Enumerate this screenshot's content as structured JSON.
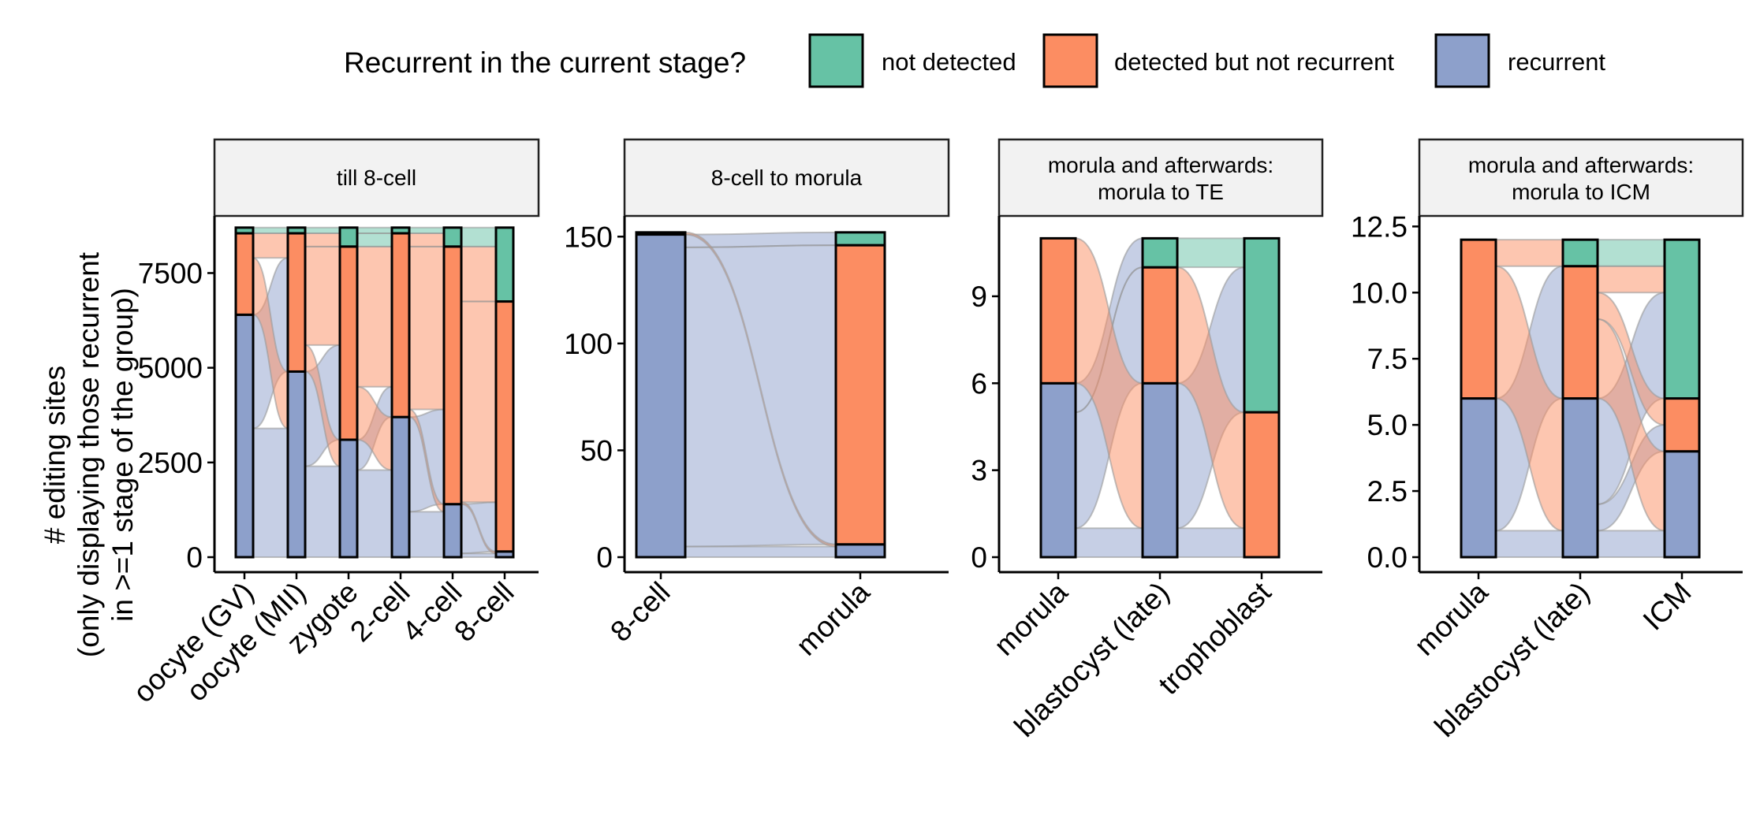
{
  "legend": {
    "title": "Recurrent in the current stage?",
    "items": [
      {
        "label": "not detected",
        "color": "#66c2a5"
      },
      {
        "label": "detected but not recurrent",
        "color": "#fc8d62"
      },
      {
        "label": "recurrent",
        "color": "#8da0cb"
      }
    ]
  },
  "y_axis_title": [
    "# editing sites",
    "(only displaying those recurrent",
    "in >=1 stage of the group)"
  ],
  "chart_data": [
    {
      "type": "alluvial",
      "title": "till 8-cell",
      "ylim": [
        0,
        8800
      ],
      "yticks": [
        0,
        2500,
        5000,
        7500
      ],
      "ytick_labels": [
        "0",
        "2500",
        "5000",
        "7500"
      ],
      "categories": [
        "oocyte (GV)",
        "oocyte (MII)",
        "zygote",
        "2-cell",
        "4-cell",
        "8-cell"
      ],
      "series": [
        {
          "name": "recurrent",
          "values": [
            6400,
            4900,
            3100,
            3700,
            1400,
            150
          ]
        },
        {
          "name": "detected but not recurrent",
          "values": [
            2150,
            3650,
            5100,
            4850,
            6800,
            6600
          ]
        },
        {
          "name": "not detected",
          "values": [
            150,
            150,
            500,
            150,
            500,
            1950
          ]
        }
      ],
      "flows": [
        {
          "from": [
            0,
            "recurrent"
          ],
          "to": [
            1,
            "recurrent"
          ],
          "value": 3400
        },
        {
          "from": [
            0,
            "recurrent"
          ],
          "to": [
            1,
            "detected but not recurrent"
          ],
          "value": 3000
        },
        {
          "from": [
            0,
            "detected but not recurrent"
          ],
          "to": [
            1,
            "recurrent"
          ],
          "value": 1500
        },
        {
          "from": [
            0,
            "detected but not recurrent"
          ],
          "to": [
            1,
            "detected but not recurrent"
          ],
          "value": 650
        },
        {
          "from": [
            0,
            "not detected"
          ],
          "to": [
            1,
            "not detected"
          ],
          "value": 150
        },
        {
          "from": [
            1,
            "recurrent"
          ],
          "to": [
            2,
            "recurrent"
          ],
          "value": 2400
        },
        {
          "from": [
            1,
            "recurrent"
          ],
          "to": [
            2,
            "detected but not recurrent"
          ],
          "value": 2500
        },
        {
          "from": [
            1,
            "detected but not recurrent"
          ],
          "to": [
            2,
            "recurrent"
          ],
          "value": 700
        },
        {
          "from": [
            1,
            "detected but not recurrent"
          ],
          "to": [
            2,
            "detected but not recurrent"
          ],
          "value": 2600
        },
        {
          "from": [
            1,
            "detected but not recurrent"
          ],
          "to": [
            2,
            "not detected"
          ],
          "value": 350
        },
        {
          "from": [
            1,
            "not detected"
          ],
          "to": [
            2,
            "not detected"
          ],
          "value": 150
        },
        {
          "from": [
            2,
            "recurrent"
          ],
          "to": [
            3,
            "recurrent"
          ],
          "value": 2300
        },
        {
          "from": [
            2,
            "recurrent"
          ],
          "to": [
            3,
            "detected but not recurrent"
          ],
          "value": 800
        },
        {
          "from": [
            2,
            "detected but not recurrent"
          ],
          "to": [
            3,
            "recurrent"
          ],
          "value": 1400
        },
        {
          "from": [
            2,
            "detected but not recurrent"
          ],
          "to": [
            3,
            "detected but not recurrent"
          ],
          "value": 3700
        },
        {
          "from": [
            2,
            "not detected"
          ],
          "to": [
            3,
            "detected but not recurrent"
          ],
          "value": 350
        },
        {
          "from": [
            2,
            "not detected"
          ],
          "to": [
            3,
            "not detected"
          ],
          "value": 150
        },
        {
          "from": [
            3,
            "recurrent"
          ],
          "to": [
            4,
            "recurrent"
          ],
          "value": 1200
        },
        {
          "from": [
            3,
            "recurrent"
          ],
          "to": [
            4,
            "detected but not recurrent"
          ],
          "value": 2500
        },
        {
          "from": [
            3,
            "detected but not recurrent"
          ],
          "to": [
            4,
            "recurrent"
          ],
          "value": 200
        },
        {
          "from": [
            3,
            "detected but not recurrent"
          ],
          "to": [
            4,
            "detected but not recurrent"
          ],
          "value": 4300
        },
        {
          "from": [
            3,
            "detected but not recurrent"
          ],
          "to": [
            4,
            "not detected"
          ],
          "value": 350
        },
        {
          "from": [
            3,
            "not detected"
          ],
          "to": [
            4,
            "not detected"
          ],
          "value": 150
        },
        {
          "from": [
            4,
            "recurrent"
          ],
          "to": [
            5,
            "recurrent"
          ],
          "value": 100
        },
        {
          "from": [
            4,
            "recurrent"
          ],
          "to": [
            5,
            "detected but not recurrent"
          ],
          "value": 1300
        },
        {
          "from": [
            4,
            "detected but not recurrent"
          ],
          "to": [
            5,
            "recurrent"
          ],
          "value": 50
        },
        {
          "from": [
            4,
            "detected but not recurrent"
          ],
          "to": [
            5,
            "detected but not recurrent"
          ],
          "value": 5300
        },
        {
          "from": [
            4,
            "detected but not recurrent"
          ],
          "to": [
            5,
            "not detected"
          ],
          "value": 1450
        },
        {
          "from": [
            4,
            "not detected"
          ],
          "to": [
            5,
            "not detected"
          ],
          "value": 500
        }
      ]
    },
    {
      "type": "alluvial",
      "title": "8-cell to morula",
      "ylim": [
        0,
        156
      ],
      "yticks": [
        0,
        50,
        100,
        150
      ],
      "ytick_labels": [
        "0",
        "50",
        "100",
        "150"
      ],
      "categories": [
        "8-cell",
        "morula"
      ],
      "series": [
        {
          "name": "recurrent",
          "values": [
            151,
            6
          ]
        },
        {
          "name": "detected but not recurrent",
          "values": [
            1,
            140
          ]
        },
        {
          "name": "not detected",
          "values": [
            0,
            6
          ]
        }
      ],
      "flows": [
        {
          "from": [
            0,
            "recurrent"
          ],
          "to": [
            1,
            "recurrent"
          ],
          "value": 5
        },
        {
          "from": [
            0,
            "recurrent"
          ],
          "to": [
            1,
            "detected but not recurrent"
          ],
          "value": 140
        },
        {
          "from": [
            0,
            "recurrent"
          ],
          "to": [
            1,
            "not detected"
          ],
          "value": 6
        },
        {
          "from": [
            0,
            "detected but not recurrent"
          ],
          "to": [
            1,
            "recurrent"
          ],
          "value": 1
        }
      ]
    },
    {
      "type": "alluvial",
      "title": [
        "morula and afterwards:",
        "morula to TE"
      ],
      "ylim": [
        0,
        11.5
      ],
      "yticks": [
        0,
        3,
        6,
        9
      ],
      "ytick_labels": [
        "0",
        "3",
        "6",
        "9"
      ],
      "categories": [
        "morula",
        "blastocyst (late)",
        "trophoblast"
      ],
      "series": [
        {
          "name": "recurrent",
          "values": [
            6,
            6,
            0
          ]
        },
        {
          "name": "detected but not recurrent",
          "values": [
            5,
            4,
            5
          ]
        },
        {
          "name": "not detected",
          "values": [
            0,
            1,
            6
          ]
        }
      ],
      "flows": [
        {
          "from": [
            0,
            "recurrent"
          ],
          "to": [
            1,
            "recurrent"
          ],
          "value": 1
        },
        {
          "from": [
            0,
            "recurrent"
          ],
          "to": [
            1,
            "detected but not recurrent"
          ],
          "value": 4
        },
        {
          "from": [
            0,
            "recurrent"
          ],
          "to": [
            1,
            "not detected"
          ],
          "value": 1
        },
        {
          "from": [
            0,
            "detected but not recurrent"
          ],
          "to": [
            1,
            "recurrent"
          ],
          "value": 5
        },
        {
          "from": [
            1,
            "recurrent"
          ],
          "to": [
            2,
            "detected but not recurrent"
          ],
          "value": 1
        },
        {
          "from": [
            1,
            "recurrent"
          ],
          "to": [
            2,
            "not detected"
          ],
          "value": 5
        },
        {
          "from": [
            1,
            "detected but not recurrent"
          ],
          "to": [
            2,
            "detected but not recurrent"
          ],
          "value": 4
        },
        {
          "from": [
            1,
            "not detected"
          ],
          "to": [
            2,
            "not detected"
          ],
          "value": 1
        }
      ]
    },
    {
      "type": "alluvial",
      "title": [
        "morula and afterwards:",
        "morula to ICM"
      ],
      "ylim": [
        0,
        12.6
      ],
      "yticks": [
        0,
        2.5,
        5,
        7.5,
        10,
        12.5
      ],
      "ytick_labels": [
        "0.0",
        "2.5",
        "5.0",
        "7.5",
        "10.0",
        "12.5"
      ],
      "categories": [
        "morula",
        "blastocyst (late)",
        "ICM"
      ],
      "series": [
        {
          "name": "recurrent",
          "values": [
            6,
            6,
            4
          ]
        },
        {
          "name": "detected but not recurrent",
          "values": [
            6,
            5,
            2
          ]
        },
        {
          "name": "not detected",
          "values": [
            0,
            1,
            6
          ]
        }
      ],
      "flows": [
        {
          "from": [
            0,
            "recurrent"
          ],
          "to": [
            1,
            "recurrent"
          ],
          "value": 1
        },
        {
          "from": [
            0,
            "recurrent"
          ],
          "to": [
            1,
            "detected but not recurrent"
          ],
          "value": 5
        },
        {
          "from": [
            0,
            "detected but not recurrent"
          ],
          "to": [
            1,
            "recurrent"
          ],
          "value": 5
        },
        {
          "from": [
            0,
            "detected but not recurrent"
          ],
          "to": [
            1,
            "not detected"
          ],
          "value": 1
        },
        {
          "from": [
            1,
            "recurrent"
          ],
          "to": [
            2,
            "recurrent"
          ],
          "value": 1
        },
        {
          "from": [
            1,
            "recurrent"
          ],
          "to": [
            2,
            "detected but not recurrent"
          ],
          "value": 1
        },
        {
          "from": [
            1,
            "recurrent"
          ],
          "to": [
            2,
            "not detected"
          ],
          "value": 4
        },
        {
          "from": [
            1,
            "detected but not recurrent"
          ],
          "to": [
            2,
            "recurrent"
          ],
          "value": 3
        },
        {
          "from": [
            1,
            "detected but not recurrent"
          ],
          "to": [
            2,
            "detected but not recurrent"
          ],
          "value": 1
        },
        {
          "from": [
            1,
            "detected but not recurrent"
          ],
          "to": [
            2,
            "not detected"
          ],
          "value": 1
        },
        {
          "from": [
            1,
            "not detected"
          ],
          "to": [
            2,
            "not detected"
          ],
          "value": 1
        }
      ]
    }
  ]
}
